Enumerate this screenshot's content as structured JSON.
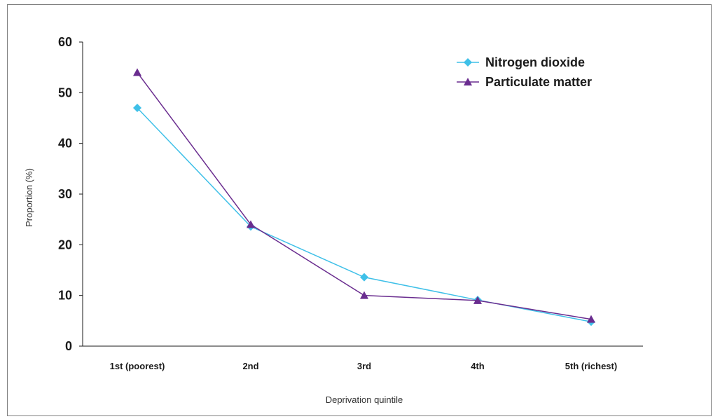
{
  "chart_data": {
    "type": "line",
    "title": "",
    "xlabel": "Deprivation quintile",
    "ylabel": "Proportion (%)",
    "categories": [
      "1st (poorest)",
      "2nd",
      "3rd",
      "4th",
      "5th (richest)"
    ],
    "ylim": [
      0,
      60
    ],
    "yticks": [
      0,
      10,
      20,
      30,
      40,
      50,
      60
    ],
    "grid": false,
    "legend_position": "top-right",
    "series": [
      {
        "name": "Nitrogen dioxide",
        "values": [
          47,
          23.6,
          13.6,
          9.1,
          4.8
        ],
        "color": "#3fc0e8",
        "marker": "diamond"
      },
      {
        "name": "Particulate matter",
        "values": [
          54,
          24,
          10,
          9,
          5.3
        ],
        "color": "#6a2d8f",
        "marker": "triangle"
      }
    ]
  }
}
